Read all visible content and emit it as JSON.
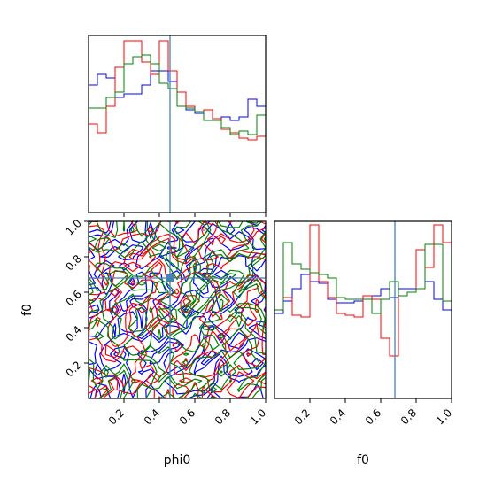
{
  "chart_data": {
    "type": "corner",
    "parameters": [
      "phi0",
      "f0"
    ],
    "truth": {
      "phi0": 0.46,
      "f0": 0.68
    },
    "truth_color": "#4682b4",
    "axis_labels": {
      "x_bottom_left": "phi0",
      "x_bottom_right": "f0",
      "y_left": "f0"
    },
    "xlim": [
      0,
      1
    ],
    "ylim": [
      0,
      1
    ],
    "ticks": [
      0.2,
      0.4,
      0.6,
      0.8,
      1.0
    ],
    "tick_labels": [
      "0.2",
      "0.4",
      "0.6",
      "0.8",
      "1.0"
    ],
    "series": [
      {
        "color": "#0000ff",
        "hist_phi0": [
          0.72,
          0.78,
          0.76,
          0.65,
          0.67,
          0.67,
          0.72,
          0.8,
          0.8,
          0.74,
          0.68,
          0.58,
          0.56,
          0.52,
          0.53,
          0.54,
          0.52,
          0.54,
          0.64,
          0.6
        ],
        "hist_f0": [
          0.48,
          0.55,
          0.62,
          0.7,
          0.66,
          0.65,
          0.56,
          0.54,
          0.54,
          0.55,
          0.56,
          0.58,
          0.62,
          0.57,
          0.62,
          0.62,
          0.62,
          0.66,
          0.56,
          0.5
        ]
      },
      {
        "color": "#ff0000",
        "hist_phi0": [
          0.5,
          0.45,
          0.6,
          0.82,
          0.97,
          0.97,
          0.85,
          0.78,
          0.97,
          0.8,
          0.68,
          0.6,
          0.57,
          0.58,
          0.53,
          0.47,
          0.45,
          0.42,
          0.41,
          0.43
        ],
        "hist_f0": [
          0.5,
          0.57,
          0.47,
          0.46,
          0.98,
          0.66,
          0.57,
          0.48,
          0.47,
          0.46,
          0.58,
          0.56,
          0.34,
          0.24,
          0.58,
          0.6,
          0.84,
          0.74,
          0.98,
          0.88
        ]
      },
      {
        "color": "#008000",
        "hist_phi0": [
          0.59,
          0.59,
          0.65,
          0.68,
          0.84,
          0.88,
          0.89,
          0.84,
          0.73,
          0.7,
          0.6,
          0.59,
          0.57,
          0.52,
          0.52,
          0.48,
          0.44,
          0.46,
          0.44,
          0.55
        ],
        "hist_f0": [
          0.5,
          0.88,
          0.76,
          0.73,
          0.71,
          0.7,
          0.68,
          0.57,
          0.56,
          0.56,
          0.56,
          0.48,
          0.56,
          0.66,
          0.58,
          0.6,
          0.62,
          0.87,
          0.87,
          0.55
        ]
      }
    ]
  }
}
